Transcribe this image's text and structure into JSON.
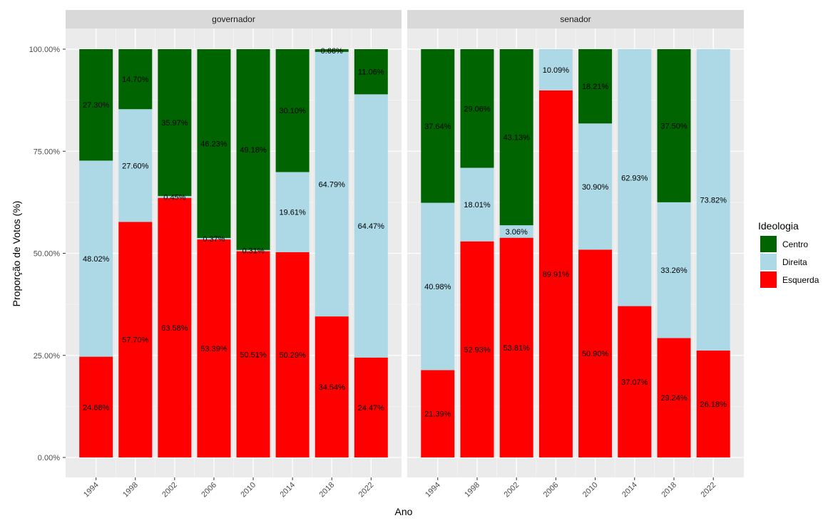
{
  "chart_data": {
    "type": "bar",
    "stacked": true,
    "xlabel": "Ano",
    "ylabel": "Proporção de Votos (%)",
    "ylim": [
      0,
      100
    ],
    "yticks": [
      "0.00%",
      "25.00%",
      "50.00%",
      "75.00%",
      "100.00%"
    ],
    "categories": [
      "1994",
      "1998",
      "2002",
      "2006",
      "2010",
      "2014",
      "2018",
      "2022"
    ],
    "legend": {
      "title": "Ideologia",
      "position": "right",
      "items": [
        {
          "name": "Centro",
          "color": "#006400"
        },
        {
          "name": "Direita",
          "color": "#add8e6"
        },
        {
          "name": "Esquerda",
          "color": "#ff0000"
        }
      ]
    },
    "stack_order_bottom_to_top": [
      "Esquerda",
      "Direita",
      "Centro"
    ],
    "panels": [
      {
        "title": "governador",
        "series": [
          {
            "name": "Esquerda",
            "values": [
              24.68,
              57.7,
              63.58,
              53.39,
              50.51,
              50.29,
              34.54,
              24.47
            ],
            "labels": [
              "24.68%",
              "57.70%",
              "63.58%",
              "53.39%",
              "50.51%",
              "50.29%",
              "34.54%",
              "24.47%"
            ]
          },
          {
            "name": "Direita",
            "values": [
              48.02,
              27.6,
              0.45,
              0.37,
              0.31,
              19.61,
              64.79,
              64.47
            ],
            "labels": [
              "48.02%",
              "27.60%",
              "0.45%",
              "0.37%",
              "0.31%",
              "19.61%",
              "64.79%",
              "64.47%"
            ]
          },
          {
            "name": "Centro",
            "values": [
              27.3,
              14.7,
              35.97,
              46.23,
              49.18,
              30.1,
              0.66,
              11.06
            ],
            "labels": [
              "27.30%",
              "14.70%",
              "35.97%",
              "46.23%",
              "49.18%",
              "30.10%",
              "0.66%",
              "11.06%"
            ]
          }
        ]
      },
      {
        "title": "senador",
        "series": [
          {
            "name": "Esquerda",
            "values": [
              21.39,
              52.93,
              53.81,
              89.91,
              50.9,
              37.07,
              29.24,
              26.18
            ],
            "labels": [
              "21.39%",
              "52.93%",
              "53.81%",
              "89.91%",
              "50.90%",
              "37.07%",
              "29.24%",
              "26.18%"
            ]
          },
          {
            "name": "Direita",
            "values": [
              40.98,
              18.01,
              3.06,
              10.09,
              30.9,
              62.93,
              33.26,
              73.82
            ],
            "labels": [
              "40.98%",
              "18.01%",
              "3.06%",
              "10.09%",
              "30.90%",
              "62.93%",
              "33.26%",
              "73.82%"
            ]
          },
          {
            "name": "Centro",
            "values": [
              37.64,
              29.06,
              43.13,
              0,
              18.21,
              0,
              37.5,
              0
            ],
            "labels": [
              "37.64%",
              "29.06%",
              "43.13%",
              "",
              "18.21%",
              "",
              "37.50%",
              ""
            ]
          }
        ]
      }
    ]
  }
}
